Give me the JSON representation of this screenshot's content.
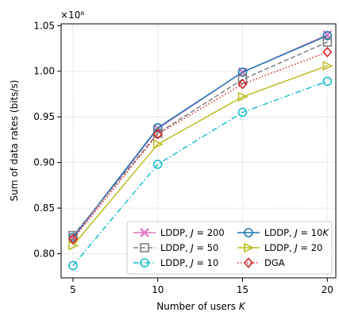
{
  "chart_data": {
    "type": "line",
    "xlabel": "Number of users K",
    "ylabel": "Sum of data rates (bits/s)",
    "y_scale_label": "×10⁸",
    "x": [
      5,
      10,
      15,
      20
    ],
    "xlim": [
      4.3,
      20.5
    ],
    "ylim": [
      0.7735,
      1.052
    ],
    "xticks": [
      "5",
      "10",
      "15",
      "20"
    ],
    "yticks": [
      "0.80",
      "0.85",
      "0.90",
      "0.95",
      "1.00",
      "1.05"
    ],
    "grid": true,
    "legend_position": "lower-right",
    "series": [
      {
        "name": "LDDP, J = 200",
        "color": "#e377c2",
        "marker": "x",
        "dash": "solid",
        "values": [
          0.817,
          0.937,
          0.999,
          1.04
        ]
      },
      {
        "name": "LDDP, J = 10K",
        "color": "#1f77b4",
        "marker": "o",
        "dash": "solid",
        "values": [
          0.818,
          0.938,
          0.999,
          1.039
        ]
      },
      {
        "name": "LDDP, J = 50",
        "color": "#7f7f7f",
        "marker": "s",
        "dash": "dashed",
        "values": [
          0.82,
          0.932,
          0.991,
          1.032
        ]
      },
      {
        "name": "LDDP, J = 20",
        "color": "#bcbd22",
        "marker": ">",
        "dash": "solid",
        "values": [
          0.809,
          0.92,
          0.972,
          1.006
        ]
      },
      {
        "name": "LDDP, J = 10",
        "color": "#17becf",
        "marker": "o",
        "dash": "dashdot",
        "values": [
          0.787,
          0.898,
          0.955,
          0.989
        ]
      },
      {
        "name": "DGA",
        "color": "#d62728",
        "marker": "D",
        "dash": "dotted",
        "values": [
          0.816,
          0.931,
          0.986,
          1.021
        ]
      }
    ]
  }
}
